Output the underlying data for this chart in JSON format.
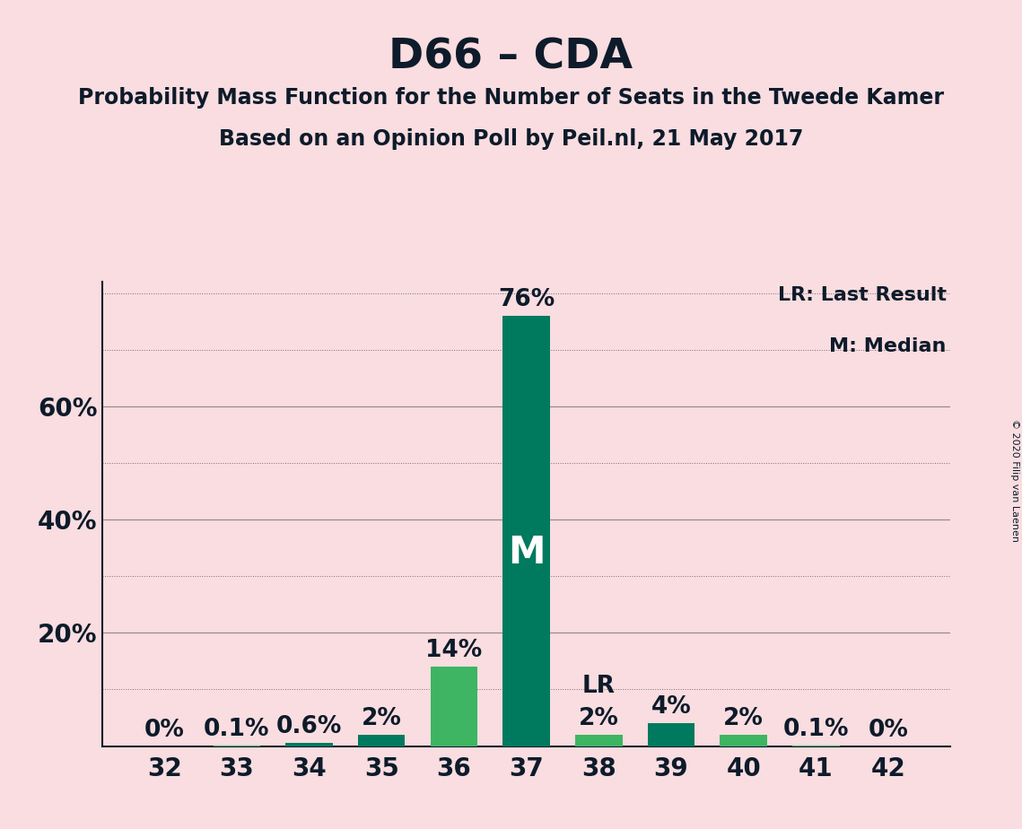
{
  "title": "D66 – CDA",
  "subtitle1": "Probability Mass Function for the Number of Seats in the Tweede Kamer",
  "subtitle2": "Based on an Opinion Poll by Peil.nl, 21 May 2017",
  "copyright": "© 2020 Filip van Laenen",
  "legend_lr": "LR: Last Result",
  "legend_m": "M: Median",
  "categories": [
    32,
    33,
    34,
    35,
    36,
    37,
    38,
    39,
    40,
    41,
    42
  ],
  "values": [
    0.0,
    0.1,
    0.6,
    2.0,
    14.0,
    76.0,
    2.0,
    4.0,
    2.0,
    0.1,
    0.0
  ],
  "labels": [
    "0%",
    "0.1%",
    "0.6%",
    "2%",
    "14%",
    "76%",
    "2%",
    "4%",
    "2%",
    "0.1%",
    "0%"
  ],
  "bar_colors": [
    "#3db562",
    "#3db562",
    "#007a5e",
    "#007a5e",
    "#3db562",
    "#007a5e",
    "#3db562",
    "#007a5e",
    "#3db562",
    "#3db562",
    "#3db562"
  ],
  "median_bar_idx": 5,
  "lr_bar_idx": 5,
  "lr_label_bar_idx": 6,
  "background_color": "#f9dde0",
  "ylim_max": 82,
  "ytick_vals": [
    0,
    10,
    20,
    30,
    40,
    50,
    60,
    70,
    80
  ],
  "solid_gridlines": [
    20,
    40,
    60
  ],
  "ytick_show": [
    20,
    40,
    60
  ],
  "title_fontsize": 34,
  "subtitle_fontsize": 17,
  "tick_fontsize": 20,
  "bar_label_fontsize": 19,
  "legend_fontsize": 16,
  "median_label_color": "#ffffff",
  "text_color": "#0d1b2a",
  "grid_color": "#555555"
}
